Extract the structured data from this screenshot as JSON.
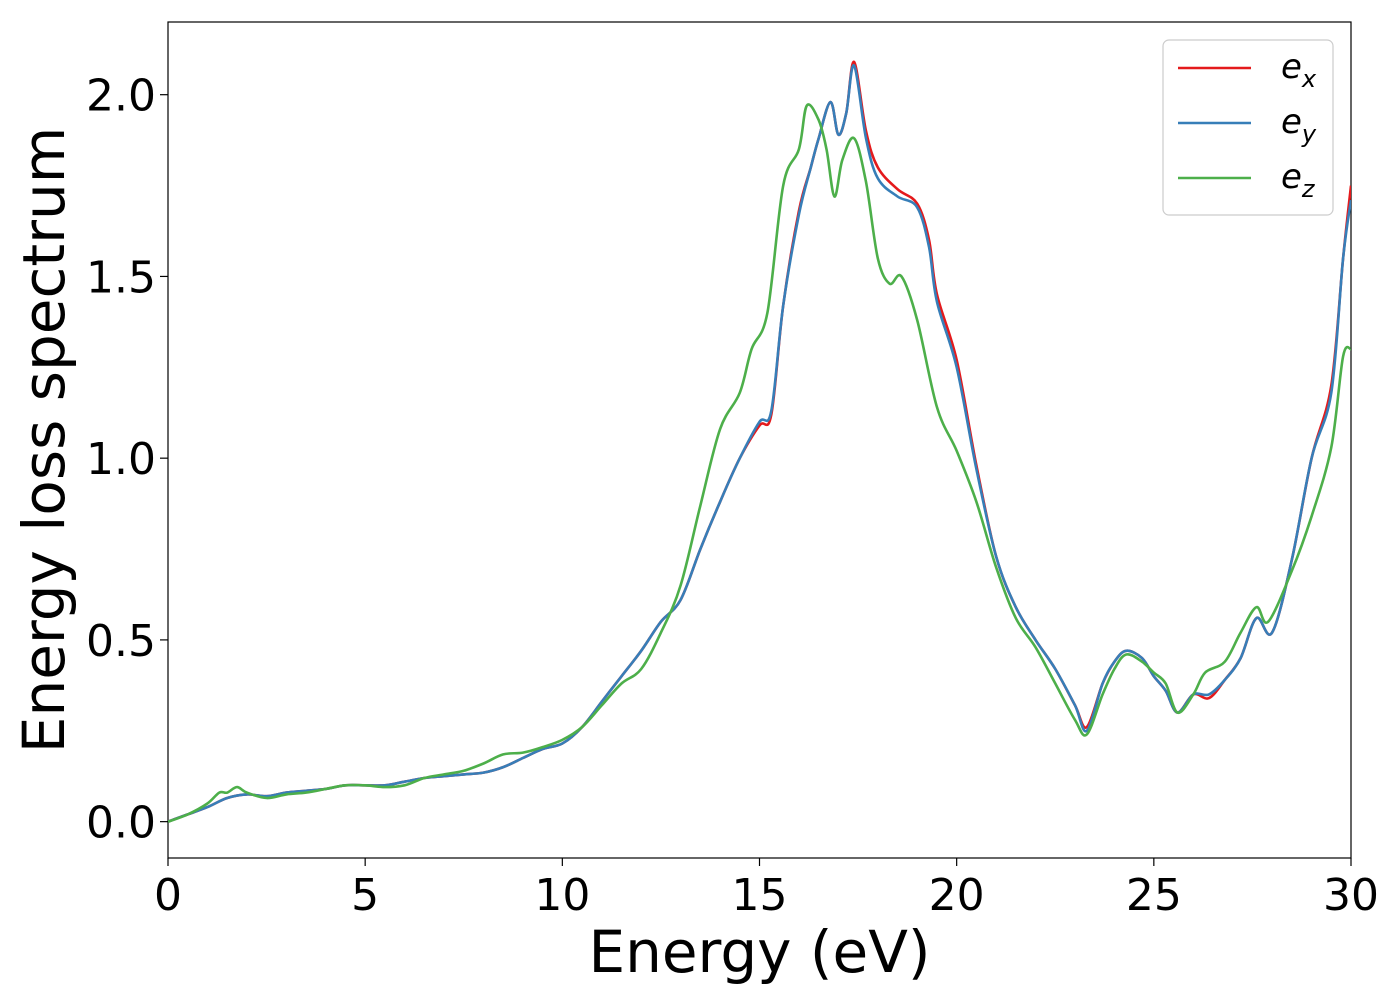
{
  "chart_data": {
    "type": "line",
    "title": "",
    "xlabel": "Energy (eV)",
    "ylabel": "Energy loss spectrum",
    "xlim": [
      0,
      30
    ],
    "ylim": [
      -0.1,
      2.2
    ],
    "xticks": [
      0,
      5,
      10,
      15,
      20,
      25,
      30
    ],
    "xtick_labels": [
      "0",
      "5",
      "10",
      "15",
      "20",
      "25",
      "30"
    ],
    "yticks": [
      0.0,
      0.5,
      1.0,
      1.5,
      2.0
    ],
    "ytick_labels": [
      "0.0",
      "0.5",
      "1.0",
      "1.5",
      "2.0"
    ],
    "grid": false,
    "legend_position": "top-right",
    "series": [
      {
        "name": "e_x",
        "label_main": "e",
        "label_sub": "x",
        "color": "#e41a1c",
        "points": [
          [
            0,
            0
          ],
          [
            0.5,
            0.02
          ],
          [
            1,
            0.04
          ],
          [
            1.5,
            0.065
          ],
          [
            2,
            0.075
          ],
          [
            2.5,
            0.07
          ],
          [
            3,
            0.08
          ],
          [
            3.5,
            0.085
          ],
          [
            4,
            0.09
          ],
          [
            4.5,
            0.1
          ],
          [
            5,
            0.1
          ],
          [
            5.5,
            0.1
          ],
          [
            6,
            0.11
          ],
          [
            6.5,
            0.12
          ],
          [
            7,
            0.125
          ],
          [
            7.5,
            0.13
          ],
          [
            8,
            0.135
          ],
          [
            8.5,
            0.15
          ],
          [
            9,
            0.175
          ],
          [
            9.5,
            0.2
          ],
          [
            10,
            0.215
          ],
          [
            10.5,
            0.26
          ],
          [
            11,
            0.33
          ],
          [
            11.5,
            0.4
          ],
          [
            12,
            0.47
          ],
          [
            12.5,
            0.55
          ],
          [
            13,
            0.61
          ],
          [
            13.5,
            0.75
          ],
          [
            14,
            0.88
          ],
          [
            14.5,
            1.0
          ],
          [
            15,
            1.09
          ],
          [
            15.3,
            1.12
          ],
          [
            15.6,
            1.42
          ],
          [
            16,
            1.68
          ],
          [
            16.3,
            1.8
          ],
          [
            16.5,
            1.88
          ],
          [
            16.8,
            1.98
          ],
          [
            17,
            1.89
          ],
          [
            17.2,
            1.95
          ],
          [
            17.4,
            2.09
          ],
          [
            17.7,
            1.9
          ],
          [
            18,
            1.8
          ],
          [
            18.5,
            1.74
          ],
          [
            19,
            1.7
          ],
          [
            19.3,
            1.6
          ],
          [
            19.5,
            1.45
          ],
          [
            20,
            1.27
          ],
          [
            20.5,
            0.98
          ],
          [
            21,
            0.73
          ],
          [
            21.5,
            0.59
          ],
          [
            22,
            0.5
          ],
          [
            22.5,
            0.42
          ],
          [
            23,
            0.32
          ],
          [
            23.3,
            0.26
          ],
          [
            23.7,
            0.38
          ],
          [
            24,
            0.44
          ],
          [
            24.3,
            0.47
          ],
          [
            24.7,
            0.45
          ],
          [
            25,
            0.4
          ],
          [
            25.3,
            0.36
          ],
          [
            25.6,
            0.3
          ],
          [
            26,
            0.35
          ],
          [
            26.4,
            0.34
          ],
          [
            26.8,
            0.39
          ],
          [
            27.2,
            0.45
          ],
          [
            27.6,
            0.56
          ],
          [
            28,
            0.52
          ],
          [
            28.5,
            0.72
          ],
          [
            29,
            1.0
          ],
          [
            29.5,
            1.2
          ],
          [
            29.8,
            1.55
          ],
          [
            30,
            1.75
          ]
        ]
      },
      {
        "name": "e_y",
        "label_main": "e",
        "label_sub": "y",
        "color": "#377eb8",
        "points": [
          [
            0,
            0
          ],
          [
            0.5,
            0.02
          ],
          [
            1,
            0.04
          ],
          [
            1.5,
            0.065
          ],
          [
            2,
            0.075
          ],
          [
            2.5,
            0.07
          ],
          [
            3,
            0.08
          ],
          [
            3.5,
            0.085
          ],
          [
            4,
            0.09
          ],
          [
            4.5,
            0.1
          ],
          [
            5,
            0.1
          ],
          [
            5.5,
            0.1
          ],
          [
            6,
            0.11
          ],
          [
            6.5,
            0.12
          ],
          [
            7,
            0.125
          ],
          [
            7.5,
            0.13
          ],
          [
            8,
            0.135
          ],
          [
            8.5,
            0.15
          ],
          [
            9,
            0.175
          ],
          [
            9.5,
            0.2
          ],
          [
            10,
            0.215
          ],
          [
            10.5,
            0.26
          ],
          [
            11,
            0.33
          ],
          [
            11.5,
            0.4
          ],
          [
            12,
            0.47
          ],
          [
            12.5,
            0.55
          ],
          [
            13,
            0.61
          ],
          [
            13.5,
            0.75
          ],
          [
            14,
            0.88
          ],
          [
            14.5,
            1.0
          ],
          [
            15,
            1.1
          ],
          [
            15.3,
            1.13
          ],
          [
            15.6,
            1.42
          ],
          [
            16,
            1.67
          ],
          [
            16.3,
            1.8
          ],
          [
            16.5,
            1.88
          ],
          [
            16.8,
            1.98
          ],
          [
            17,
            1.89
          ],
          [
            17.2,
            1.95
          ],
          [
            17.4,
            2.08
          ],
          [
            17.7,
            1.88
          ],
          [
            18,
            1.77
          ],
          [
            18.5,
            1.72
          ],
          [
            19,
            1.69
          ],
          [
            19.3,
            1.58
          ],
          [
            19.5,
            1.43
          ],
          [
            20,
            1.25
          ],
          [
            20.5,
            0.97
          ],
          [
            21,
            0.73
          ],
          [
            21.5,
            0.59
          ],
          [
            22,
            0.5
          ],
          [
            22.5,
            0.42
          ],
          [
            23,
            0.32
          ],
          [
            23.3,
            0.25
          ],
          [
            23.7,
            0.38
          ],
          [
            24,
            0.44
          ],
          [
            24.3,
            0.47
          ],
          [
            24.7,
            0.45
          ],
          [
            25,
            0.4
          ],
          [
            25.3,
            0.36
          ],
          [
            25.6,
            0.3
          ],
          [
            26,
            0.35
          ],
          [
            26.4,
            0.35
          ],
          [
            26.8,
            0.39
          ],
          [
            27.2,
            0.45
          ],
          [
            27.6,
            0.56
          ],
          [
            28,
            0.52
          ],
          [
            28.5,
            0.72
          ],
          [
            29,
            1.0
          ],
          [
            29.5,
            1.18
          ],
          [
            29.8,
            1.55
          ],
          [
            30,
            1.71
          ]
        ]
      },
      {
        "name": "e_z",
        "label_main": "e",
        "label_sub": "z",
        "color": "#4daf4a",
        "points": [
          [
            0,
            0
          ],
          [
            0.5,
            0.02
          ],
          [
            1,
            0.05
          ],
          [
            1.3,
            0.08
          ],
          [
            1.5,
            0.08
          ],
          [
            1.75,
            0.095
          ],
          [
            2,
            0.08
          ],
          [
            2.5,
            0.065
          ],
          [
            3,
            0.075
          ],
          [
            3.5,
            0.08
          ],
          [
            4,
            0.09
          ],
          [
            4.5,
            0.1
          ],
          [
            5,
            0.1
          ],
          [
            5.5,
            0.095
          ],
          [
            6,
            0.1
          ],
          [
            6.5,
            0.12
          ],
          [
            7,
            0.13
          ],
          [
            7.5,
            0.14
          ],
          [
            8,
            0.16
          ],
          [
            8.5,
            0.185
          ],
          [
            9,
            0.19
          ],
          [
            9.5,
            0.205
          ],
          [
            10,
            0.225
          ],
          [
            10.5,
            0.26
          ],
          [
            11,
            0.32
          ],
          [
            11.5,
            0.38
          ],
          [
            12,
            0.42
          ],
          [
            12.5,
            0.52
          ],
          [
            13,
            0.65
          ],
          [
            13.5,
            0.87
          ],
          [
            14,
            1.08
          ],
          [
            14.5,
            1.18
          ],
          [
            14.8,
            1.3
          ],
          [
            15.2,
            1.4
          ],
          [
            15.6,
            1.75
          ],
          [
            16,
            1.85
          ],
          [
            16.2,
            1.97
          ],
          [
            16.5,
            1.93
          ],
          [
            16.7,
            1.85
          ],
          [
            16.9,
            1.72
          ],
          [
            17.1,
            1.82
          ],
          [
            17.4,
            1.88
          ],
          [
            17.7,
            1.76
          ],
          [
            18,
            1.55
          ],
          [
            18.3,
            1.48
          ],
          [
            18.6,
            1.5
          ],
          [
            19,
            1.38
          ],
          [
            19.5,
            1.14
          ],
          [
            20,
            1.02
          ],
          [
            20.5,
            0.88
          ],
          [
            21,
            0.7
          ],
          [
            21.5,
            0.56
          ],
          [
            22,
            0.48
          ],
          [
            22.5,
            0.38
          ],
          [
            23,
            0.28
          ],
          [
            23.3,
            0.24
          ],
          [
            23.7,
            0.35
          ],
          [
            24,
            0.42
          ],
          [
            24.3,
            0.46
          ],
          [
            24.7,
            0.44
          ],
          [
            25,
            0.41
          ],
          [
            25.3,
            0.38
          ],
          [
            25.6,
            0.3
          ],
          [
            26,
            0.35
          ],
          [
            26.3,
            0.41
          ],
          [
            26.8,
            0.44
          ],
          [
            27.2,
            0.52
          ],
          [
            27.6,
            0.59
          ],
          [
            27.9,
            0.55
          ],
          [
            28.5,
            0.69
          ],
          [
            29,
            0.84
          ],
          [
            29.5,
            1.03
          ],
          [
            29.8,
            1.28
          ],
          [
            30,
            1.3
          ]
        ]
      }
    ]
  }
}
